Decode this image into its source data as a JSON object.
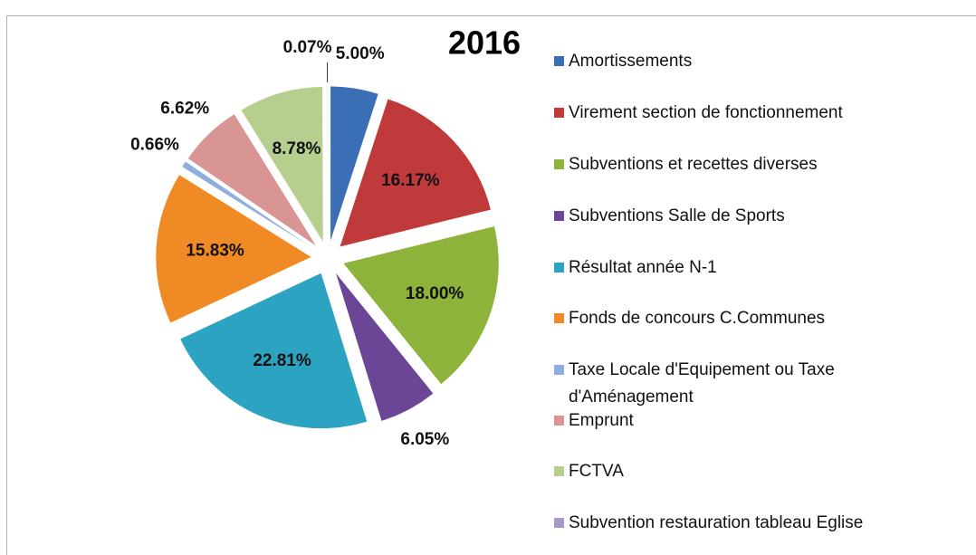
{
  "chart_data": {
    "type": "pie",
    "title": "2016",
    "categories": [
      "Amortissements",
      "Virement section de fonctionnement",
      "Subventions et recettes diverses",
      "Subventions Salle de Sports",
      "Résultat année N-1",
      "Fonds de concours C.Communes",
      "Taxe Locale d'Equipement ou Taxe d'Aménagement",
      "Emprunt",
      "FCTVA",
      "Subvention restauration tableau Eglise"
    ],
    "values": [
      5.0,
      16.17,
      18.0,
      6.05,
      22.81,
      15.83,
      0.66,
      6.62,
      8.78,
      0.07
    ],
    "value_labels": [
      "5.00%",
      "16.17%",
      "18.00%",
      "6.05%",
      "22.81%",
      "15.83%",
      "0.66%",
      "6.62%",
      "8.78%",
      "0.07%"
    ],
    "colors": [
      "#3a6fb5",
      "#c0393b",
      "#8db33a",
      "#6b4596",
      "#2ba3c1",
      "#f08a24",
      "#8eaedc",
      "#d99594",
      "#b7cf8e",
      "#a898c8"
    ],
    "legend": "right"
  }
}
